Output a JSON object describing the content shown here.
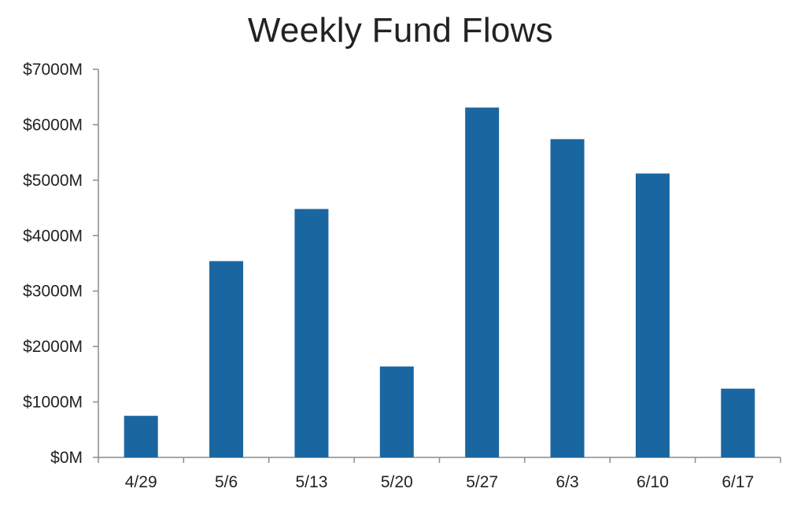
{
  "chart_data": {
    "type": "bar",
    "title": "Weekly Fund Flows",
    "xlabel": "",
    "ylabel": "",
    "categories": [
      "4/29",
      "5/6",
      "5/13",
      "5/20",
      "5/27",
      "6/3",
      "6/10",
      "6/17"
    ],
    "values": [
      750,
      3540,
      4480,
      1640,
      6310,
      5740,
      5120,
      1240
    ],
    "ylim": [
      0,
      7000
    ],
    "y_ticks": [
      0,
      1000,
      2000,
      3000,
      4000,
      5000,
      6000,
      7000
    ],
    "y_tick_labels": [
      "$0M",
      "$1000M",
      "$2000M",
      "$3000M",
      "$4000M",
      "$5000M",
      "$6000M",
      "$7000M"
    ],
    "grid": false,
    "legend": "none",
    "bar_color": "#1a66a1"
  }
}
